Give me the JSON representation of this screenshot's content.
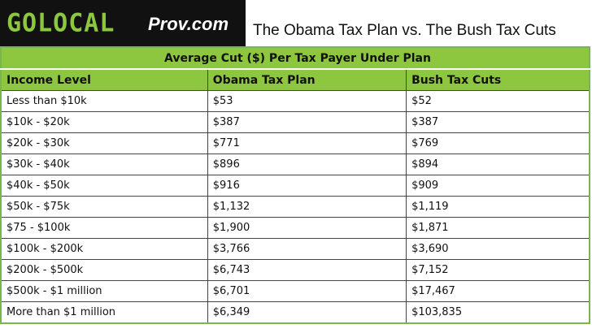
{
  "header": {
    "logo": "GOLOCAL",
    "logo_suffix": "Prov.com",
    "title": "The Obama Tax Plan vs. The Bush Tax Cuts"
  },
  "table": {
    "caption": "Average Cut ($) Per Tax Payer Under Plan",
    "columns": [
      "Income Level",
      "Obama Tax Plan",
      "Bush Tax Cuts"
    ],
    "rows": [
      [
        "Less than $10k",
        "$53",
        "$52"
      ],
      [
        "$10k - $20k",
        "$387",
        "$387"
      ],
      [
        "$20k - $30k",
        "$771",
        "$769"
      ],
      [
        "$30k - $40k",
        "$896",
        "$894"
      ],
      [
        "$40k - $50k",
        "$916",
        "$909"
      ],
      [
        "$50k - $75k",
        "$1,132",
        "$1,119"
      ],
      [
        "$75 - $100k",
        "$1,900",
        "$1,871"
      ],
      [
        "$100k - $200k",
        "$3,766",
        "$3,690"
      ],
      [
        "$200k - $500k",
        "$6,743",
        "$7,152"
      ],
      [
        "$500k - $1 million",
        "$6,701",
        "$17,467"
      ],
      [
        "More than $1 million",
        "$6,349",
        "$103,835"
      ]
    ]
  }
}
